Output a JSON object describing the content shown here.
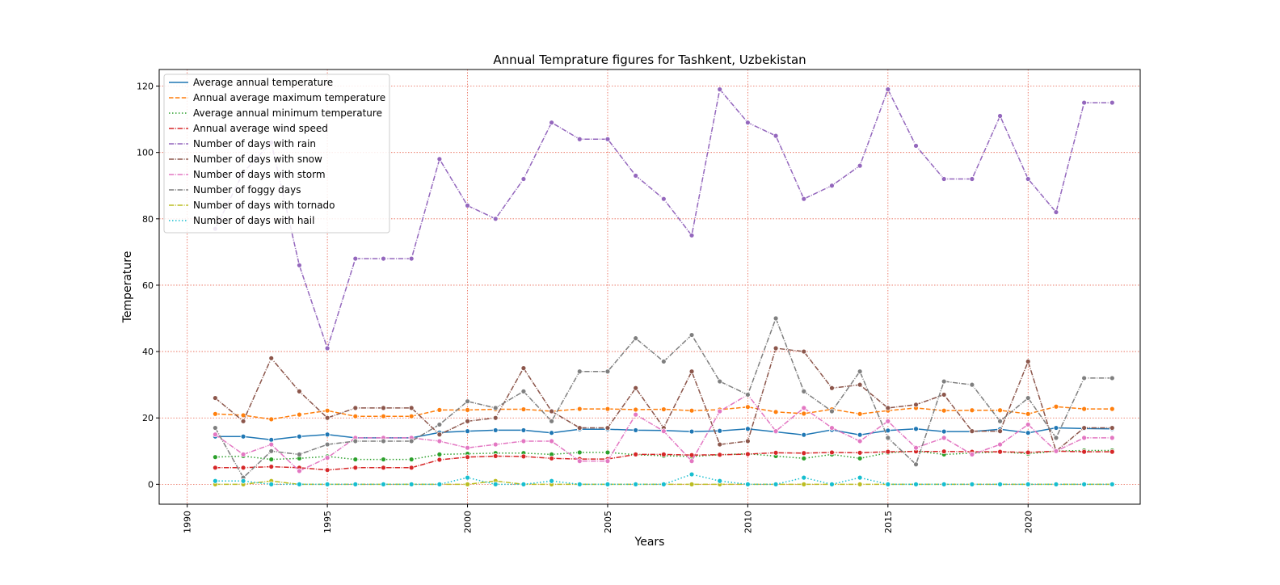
{
  "chart_data": {
    "type": "line",
    "title": "Annual Temprature figures for Tashkent, Uzbekistan",
    "xlabel": "Years",
    "ylabel": "Temperature",
    "xlim": [
      1989,
      2024
    ],
    "ylim": [
      -6,
      125
    ],
    "xticks": [
      1990,
      1995,
      2000,
      2005,
      2010,
      2015,
      2020
    ],
    "yticks": [
      0,
      20,
      40,
      60,
      80,
      100,
      120
    ],
    "grid": true,
    "grid_color": "#e8634f",
    "legend_position": "top-left",
    "x": [
      1991,
      1992,
      1993,
      1994,
      1995,
      1996,
      1997,
      1998,
      1999,
      2000,
      2001,
      2002,
      2003,
      2004,
      2005,
      2006,
      2007,
      2008,
      2009,
      2010,
      2011,
      2012,
      2013,
      2014,
      2015,
      2016,
      2017,
      2018,
      2019,
      2020,
      2021,
      2022,
      2023
    ],
    "series": [
      {
        "name": "Average annual temperature",
        "color": "#1f77b4",
        "dash": "solid",
        "values": [
          14.4,
          14.4,
          13.4,
          14.4,
          15.0,
          14.0,
          14.0,
          14.0,
          15.6,
          16.0,
          16.3,
          16.3,
          15.5,
          16.6,
          16.6,
          16.3,
          16.2,
          15.9,
          16.1,
          16.7,
          15.8,
          14.9,
          16.4,
          14.9,
          16.2,
          16.7,
          15.9,
          15.9,
          16.6,
          15.5,
          17.0,
          16.8,
          16.7
        ]
      },
      {
        "name": "Annual average maximum temperature",
        "color": "#ff7f0e",
        "dash": "dashed",
        "values": [
          21.2,
          20.8,
          19.6,
          21.0,
          22.2,
          20.5,
          20.5,
          20.5,
          22.4,
          22.4,
          22.6,
          22.6,
          22.0,
          22.7,
          22.7,
          22.5,
          22.6,
          22.2,
          22.5,
          23.3,
          21.8,
          21.3,
          22.6,
          21.2,
          22.2,
          23.0,
          22.2,
          22.3,
          22.3,
          21.2,
          23.4,
          22.7,
          22.7
        ]
      },
      {
        "name": "Average annual minimum temperature",
        "color": "#2ca02c",
        "dash": "dotted",
        "values": [
          8.2,
          8.5,
          7.5,
          7.8,
          8.4,
          7.5,
          7.5,
          7.5,
          9.0,
          9.2,
          9.4,
          9.4,
          9.0,
          9.6,
          9.6,
          8.9,
          8.6,
          8.4,
          8.9,
          9.2,
          8.5,
          7.8,
          9.0,
          7.8,
          9.5,
          10.0,
          9.0,
          9.4,
          9.8,
          9.2,
          10.0,
          10.2,
          10.2
        ]
      },
      {
        "name": "Annual average wind speed",
        "color": "#d62728",
        "dash": "dashdot",
        "values": [
          5.0,
          5.0,
          5.3,
          5.0,
          4.3,
          5.0,
          5.0,
          5.0,
          7.4,
          8.2,
          8.5,
          8.4,
          7.8,
          7.6,
          7.6,
          9.0,
          9.0,
          8.8,
          8.9,
          9.1,
          9.5,
          9.4,
          9.6,
          9.5,
          9.8,
          9.9,
          9.9,
          9.8,
          9.8,
          9.6,
          10.0,
          9.8,
          9.8
        ]
      },
      {
        "name": "Number of days with rain",
        "color": "#9467bd",
        "dash": "dashdot",
        "values": [
          77,
          94,
          103,
          66,
          41,
          68,
          68,
          68,
          98,
          84,
          80,
          92,
          109,
          104,
          104,
          93,
          86,
          75,
          119,
          109,
          105,
          86,
          90,
          96,
          119,
          102,
          92,
          92,
          111,
          92,
          82,
          115,
          115
        ]
      },
      {
        "name": "Number of days with snow",
        "color": "#8c564b",
        "dash": "dashdot",
        "values": [
          26,
          19,
          38,
          28,
          20,
          23,
          23,
          23,
          15,
          19,
          20,
          35,
          22,
          17,
          17,
          29,
          17,
          34,
          12,
          13,
          41,
          40,
          29,
          30,
          23,
          24,
          27,
          16,
          16,
          37,
          10,
          17,
          17
        ]
      },
      {
        "name": "Number of days with storm",
        "color": "#e377c2",
        "dash": "dashdot",
        "values": [
          15,
          9,
          12,
          4,
          8,
          14,
          14,
          14,
          13,
          11,
          12,
          13,
          13,
          7,
          7,
          21,
          16,
          7,
          22,
          27,
          16,
          23,
          17,
          13,
          19,
          11,
          14,
          9,
          12,
          18,
          10,
          14,
          14
        ]
      },
      {
        "name": "Number of foggy days",
        "color": "#7f7f7f",
        "dash": "dashdot",
        "values": [
          17,
          2,
          10,
          9,
          12,
          13,
          13,
          13,
          18,
          25,
          23,
          28,
          19,
          34,
          34,
          44,
          37,
          45,
          31,
          27,
          50,
          28,
          22,
          34,
          14,
          6,
          31,
          30,
          19,
          26,
          14,
          32,
          32
        ]
      },
      {
        "name": "Number of days with tornado",
        "color": "#bcbd22",
        "dash": "dashdot",
        "values": [
          0,
          0,
          1,
          0,
          0,
          0,
          0,
          0,
          0,
          0,
          1,
          0,
          0,
          0,
          0,
          0,
          0,
          0,
          0,
          0,
          0,
          0,
          0,
          0,
          0,
          0,
          0,
          0,
          0,
          0,
          0,
          0,
          0
        ]
      },
      {
        "name": "Number of days with hail",
        "color": "#17becf",
        "dash": "dotted",
        "values": [
          1,
          1,
          0,
          0,
          0,
          0,
          0,
          0,
          0,
          2,
          0,
          0,
          1,
          0,
          0,
          0,
          0,
          3,
          1,
          0,
          0,
          2,
          0,
          2,
          0,
          0,
          0,
          0,
          0,
          0,
          0,
          0,
          0
        ]
      }
    ]
  }
}
